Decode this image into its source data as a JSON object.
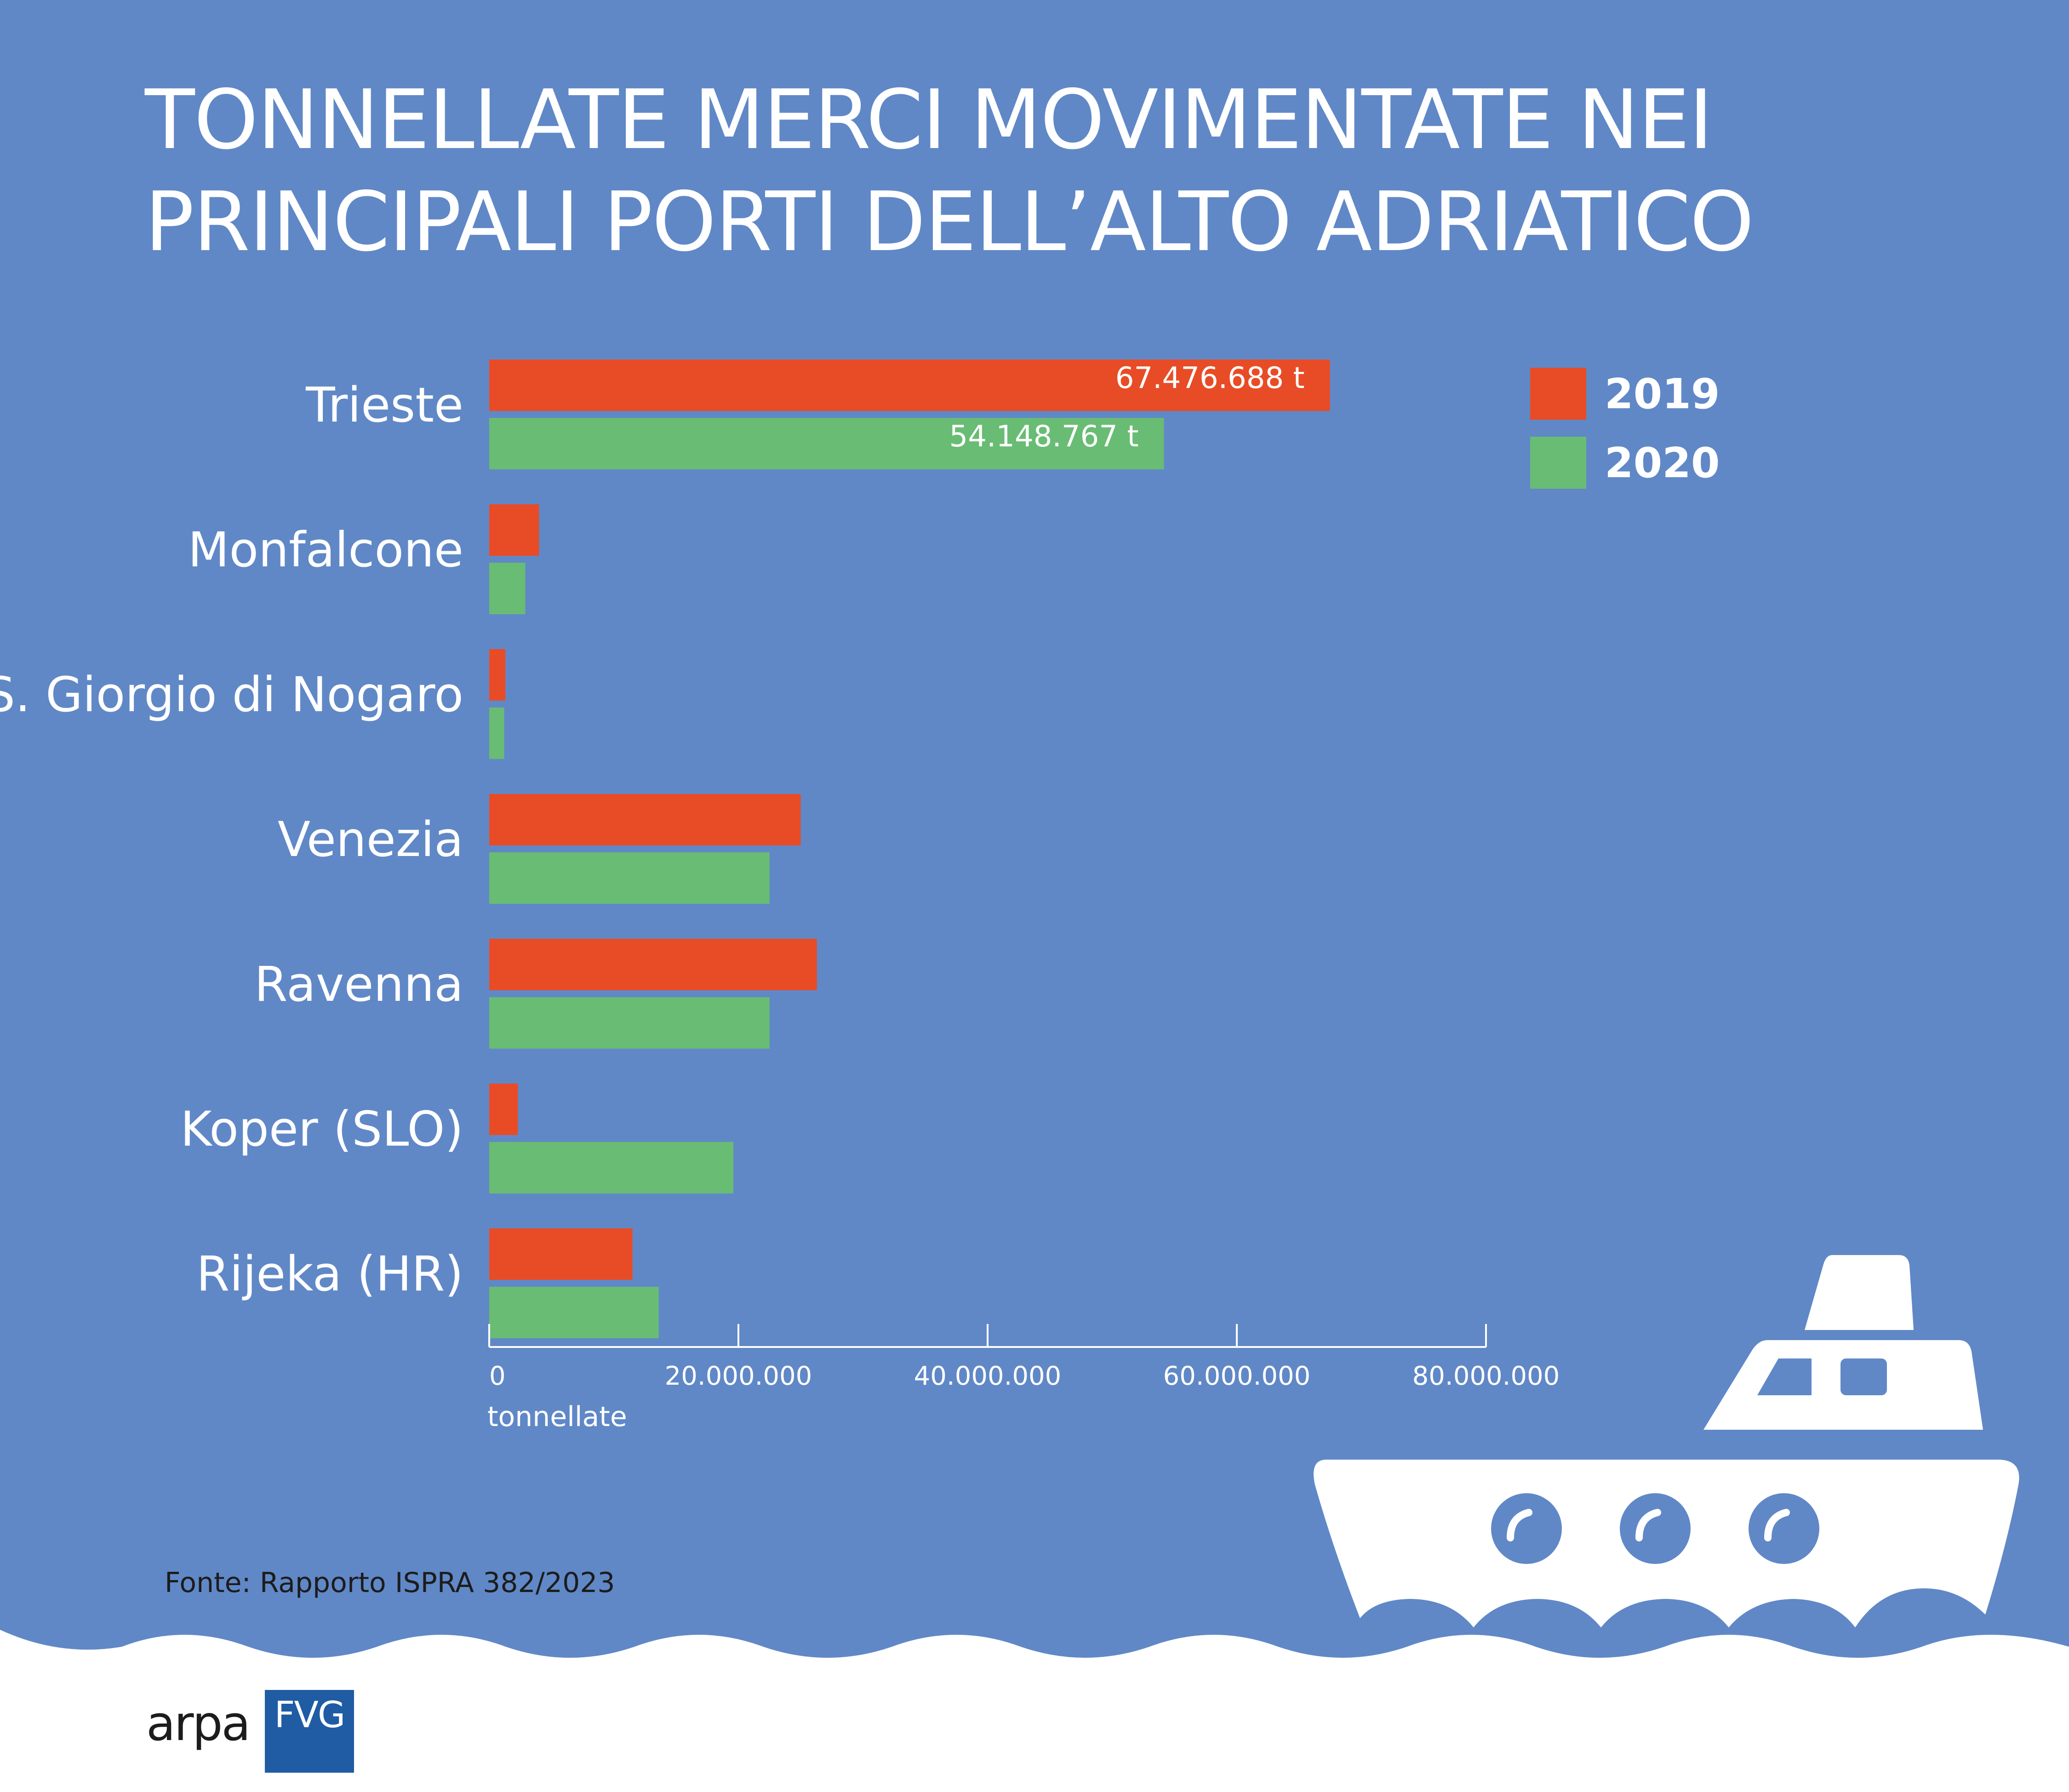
{
  "title_lines": [
    "TONNELLATE MERCI MOVIMENTATE NEI",
    "PRINCIPALI PORTI DELL’ALTO ADRIATICO"
  ],
  "source": "Fonte: Rapporto ISPRA 382/2023",
  "logo": {
    "left_text": "arpa",
    "right_text": "FVG"
  },
  "colors": {
    "background": "#6088c7",
    "y2019": "#e84c26",
    "y2020": "#69bc73",
    "ship": "#ffffff",
    "logo_blue": "#1f5ca4"
  },
  "icons": [
    "ship-icon",
    "wave-icon"
  ],
  "chart_data": {
    "type": "bar",
    "orientation": "horizontal",
    "categories": [
      "Trieste",
      "Monfalcone",
      "S. Giorgio di Nogaro",
      "Venezia",
      "Ravenna",
      "Koper (SLO)",
      "Rijeka (HR)"
    ],
    "series": [
      {
        "name": "2019",
        "values": [
          67476688,
          4000000,
          1300000,
          25000000,
          26300000,
          2300000,
          11500000
        ]
      },
      {
        "name": "2020",
        "values": [
          54148767,
          2900000,
          1200000,
          22500000,
          22500000,
          19600000,
          13600000
        ]
      }
    ],
    "value_labels": {
      "2019": [
        "67.476.688 t",
        "",
        "",
        "",
        "",
        "",
        ""
      ],
      "2020": [
        "54.148.767 t",
        "",
        "",
        "",
        "",
        "",
        ""
      ]
    },
    "xlabel": "tonnellate",
    "xlim": [
      0,
      80000000
    ],
    "xticks": [
      0,
      20000000,
      40000000,
      60000000,
      80000000
    ],
    "xtick_labels": [
      "0",
      "20.000.000",
      "40.000.000",
      "60.000.000",
      "80.000.000"
    ],
    "grid": false,
    "legend": {
      "position": "top-right",
      "entries": [
        "2019",
        "2020"
      ]
    }
  }
}
